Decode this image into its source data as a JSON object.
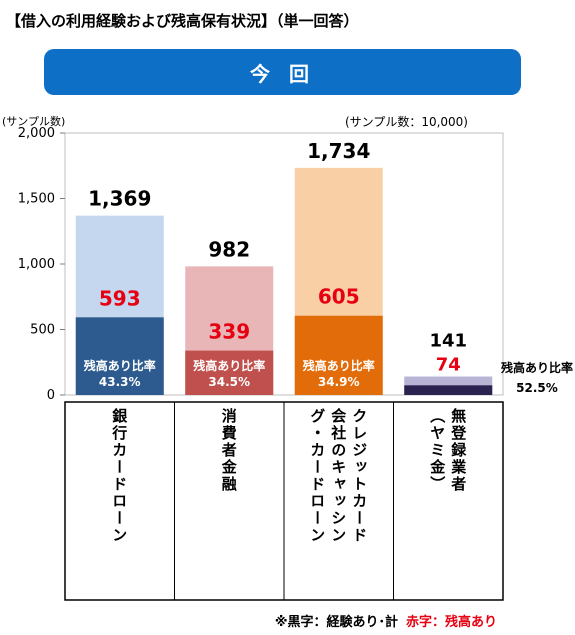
{
  "title": "【借入の利用経験および残高保有状況】（単一回答）",
  "banner": "今 回",
  "y_axis_label": "(サンプル数)",
  "sample_size": "(サンプル数：10,000)",
  "footnote": {
    "black": "※黒字：経験あり･計",
    "red": "赤字：残高あり"
  },
  "colors": {
    "accent_red": "#e60012",
    "banner": "#0e6fc6"
  },
  "chart_data": {
    "type": "bar",
    "categories": [
      "銀行カードローン",
      "消費者金融",
      "クレジットカード会社のキャッシング・カードローン",
      "無登録業者（ヤミ金）"
    ],
    "category_labels": [
      "銀行カードローン",
      "消費者金融",
      "クレジットカード\n会社のキャッシン\nグ・カードローン",
      "無登録業者\n（ヤミ金）"
    ],
    "series": [
      {
        "name": "経験あり・計",
        "values": [
          1369,
          982,
          1734,
          141
        ]
      },
      {
        "name": "残高あり",
        "values": [
          593,
          339,
          605,
          74
        ]
      }
    ],
    "total_labels": [
      "1,369",
      "982",
      "1,734",
      "141"
    ],
    "balance_labels": [
      "593",
      "339",
      "605",
      "74"
    ],
    "ratio_title": "残高あり比率",
    "ratios": [
      "43.3%",
      "34.5%",
      "34.9%",
      "52.5%"
    ],
    "ylim": [
      0,
      2000
    ],
    "yticks": [
      0,
      500,
      1000,
      1500,
      2000
    ],
    "ytick_labels": [
      "0",
      "500",
      "1,000",
      "1,500",
      "2,000"
    ],
    "bar_colors": [
      {
        "light": "#c5d7ee",
        "dark": "#2e5b8f"
      },
      {
        "light": "#e8b6b6",
        "dark": "#c0504d"
      },
      {
        "light": "#f9cfa6",
        "dark": "#e36c0a"
      },
      {
        "light": "#b8b4d6",
        "dark": "#2a2350"
      }
    ]
  }
}
